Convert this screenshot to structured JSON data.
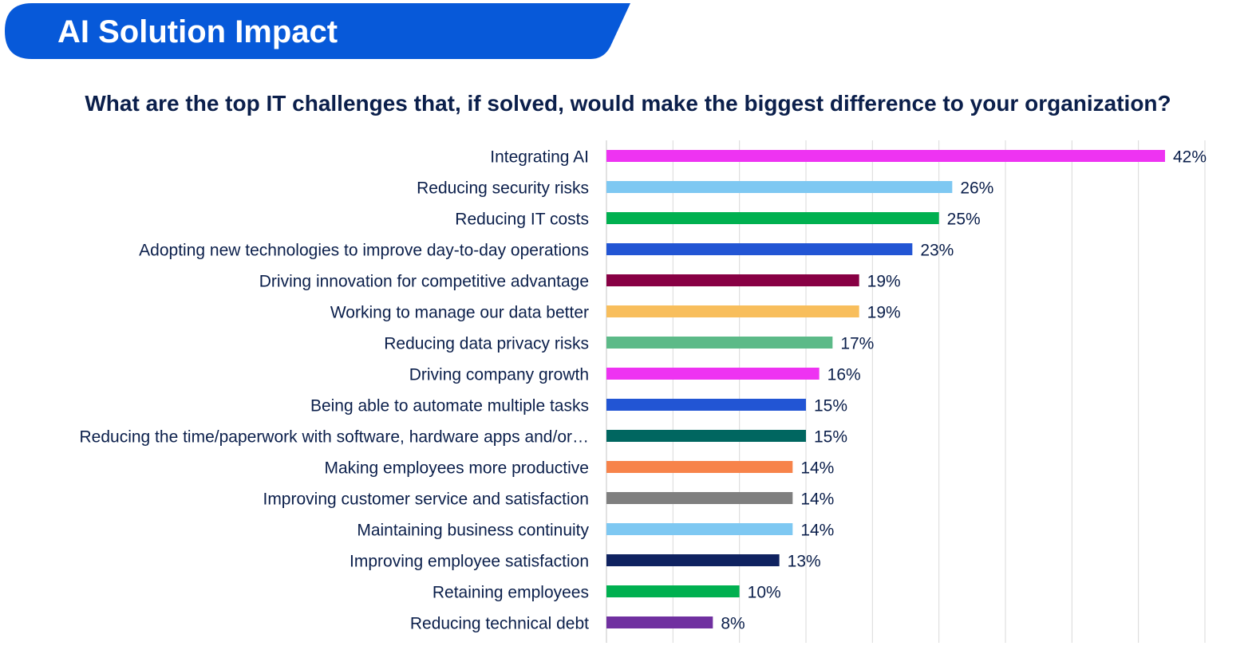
{
  "header": {
    "title": "AI Solution Impact"
  },
  "question": "What are the top IT challenges that, if solved, would make the biggest difference to your organization?",
  "colors": {
    "banner": "#0759d9",
    "text": "#0b1f4b",
    "grid": "#d9d9d9"
  },
  "chart_data": {
    "type": "bar",
    "orientation": "horizontal",
    "title": "",
    "xlabel": "",
    "ylabel": "",
    "xlim": [
      0,
      45
    ],
    "grid": true,
    "categories": [
      "Integrating AI",
      "Reducing security risks",
      "Reducing IT costs",
      "Adopting new technologies to improve day-to-day operations",
      "Driving innovation for competitive advantage",
      "Working to manage our data better",
      "Reducing data privacy risks",
      "Driving company growth",
      "Being able to automate multiple tasks",
      "Reducing the time/paperwork with software, hardware apps and/or…",
      "Making employees more productive",
      "Improving customer service and satisfaction",
      "Maintaining business continuity",
      "Improving employee satisfaction",
      "Retaining employees",
      "Reducing technical debt"
    ],
    "values": [
      42,
      26,
      25,
      23,
      19,
      19,
      17,
      16,
      15,
      15,
      14,
      14,
      14,
      13,
      10,
      8
    ],
    "data_labels": [
      "42%",
      "26%",
      "25%",
      "23%",
      "19%",
      "19%",
      "17%",
      "16%",
      "15%",
      "15%",
      "14%",
      "14%",
      "14%",
      "13%",
      "10%",
      "8%"
    ],
    "bar_colors": [
      "#ee33f2",
      "#7ec8f2",
      "#00b050",
      "#2255d4",
      "#880044",
      "#f8be5c",
      "#5cba88",
      "#ee33f2",
      "#2255d4",
      "#006660",
      "#f7834a",
      "#7f7f7f",
      "#7ec8f2",
      "#0f2260",
      "#00b050",
      "#7030a0"
    ]
  }
}
